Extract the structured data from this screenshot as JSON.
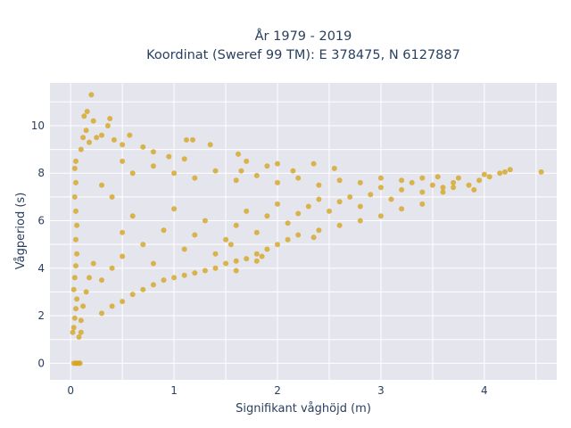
{
  "chart_data": {
    "type": "scatter",
    "title_lines": [
      "År 1979 - 2019",
      "Koordinat (Sweref 99 TM): E 378475, N 6127887"
    ],
    "xlabel": "Signifikant våghöjd (m)",
    "ylabel": "Vågperiod (s)",
    "xlim": [
      -0.2,
      4.7
    ],
    "ylim": [
      -0.7,
      11.8
    ],
    "xticks": [
      0,
      1,
      2,
      3,
      4
    ],
    "yticks": [
      0,
      2,
      4,
      6,
      8,
      10
    ],
    "grid": true,
    "legend": "none",
    "marker_color": "#d4a520",
    "plot_background": "#e5e5ee",
    "series": [
      {
        "points": [
          [
            0.03,
            0.0
          ],
          [
            0.05,
            0.0
          ],
          [
            0.06,
            0.0
          ],
          [
            0.08,
            0.0
          ],
          [
            0.09,
            0.0
          ],
          [
            0.02,
            1.3
          ],
          [
            0.03,
            1.5
          ],
          [
            0.04,
            1.9
          ],
          [
            0.05,
            2.3
          ],
          [
            0.06,
            2.7
          ],
          [
            0.03,
            3.1
          ],
          [
            0.04,
            3.6
          ],
          [
            0.05,
            4.1
          ],
          [
            0.06,
            4.6
          ],
          [
            0.05,
            5.2
          ],
          [
            0.06,
            5.8
          ],
          [
            0.05,
            6.4
          ],
          [
            0.04,
            7.0
          ],
          [
            0.05,
            7.6
          ],
          [
            0.04,
            8.2
          ],
          [
            0.05,
            8.5
          ],
          [
            0.08,
            1.1
          ],
          [
            0.1,
            1.3
          ],
          [
            0.1,
            1.8
          ],
          [
            0.12,
            2.4
          ],
          [
            0.15,
            3.0
          ],
          [
            0.18,
            3.6
          ],
          [
            0.22,
            4.2
          ],
          [
            0.1,
            9.0
          ],
          [
            0.12,
            9.5
          ],
          [
            0.13,
            10.4
          ],
          [
            0.16,
            10.6
          ],
          [
            0.2,
            11.3
          ],
          [
            0.15,
            9.8
          ],
          [
            0.18,
            9.3
          ],
          [
            0.22,
            10.2
          ],
          [
            0.25,
            9.5
          ],
          [
            0.3,
            9.6
          ],
          [
            0.36,
            10.0
          ],
          [
            0.38,
            10.3
          ],
          [
            0.42,
            9.4
          ],
          [
            0.5,
            9.2
          ],
          [
            0.57,
            9.6
          ],
          [
            0.7,
            9.1
          ],
          [
            0.8,
            8.9
          ],
          [
            0.95,
            8.7
          ],
          [
            1.12,
            9.4
          ],
          [
            1.18,
            9.4
          ],
          [
            1.35,
            9.2
          ],
          [
            1.62,
            8.8
          ],
          [
            1.7,
            8.5
          ],
          [
            1.65,
            8.1
          ],
          [
            1.9,
            8.3
          ],
          [
            2.0,
            8.4
          ],
          [
            2.15,
            8.1
          ],
          [
            2.35,
            8.4
          ],
          [
            2.55,
            8.2
          ],
          [
            0.3,
            2.1
          ],
          [
            0.4,
            2.4
          ],
          [
            0.5,
            2.6
          ],
          [
            0.6,
            2.9
          ],
          [
            0.7,
            3.1
          ],
          [
            0.8,
            3.3
          ],
          [
            0.9,
            3.5
          ],
          [
            1.0,
            3.6
          ],
          [
            1.1,
            3.7
          ],
          [
            1.2,
            3.8
          ],
          [
            1.3,
            3.9
          ],
          [
            1.4,
            4.0
          ],
          [
            1.5,
            4.2
          ],
          [
            1.6,
            4.3
          ],
          [
            1.7,
            4.4
          ],
          [
            1.8,
            4.6
          ],
          [
            1.85,
            4.5
          ],
          [
            1.9,
            4.8
          ],
          [
            2.0,
            5.0
          ],
          [
            2.1,
            5.2
          ],
          [
            2.2,
            5.4
          ],
          [
            2.4,
            5.6
          ],
          [
            2.35,
            5.3
          ],
          [
            2.6,
            5.8
          ],
          [
            2.8,
            6.0
          ],
          [
            3.0,
            6.2
          ],
          [
            3.2,
            6.5
          ],
          [
            3.4,
            6.7
          ],
          [
            0.3,
            3.5
          ],
          [
            0.4,
            4.0
          ],
          [
            0.5,
            4.5
          ],
          [
            0.5,
            5.5
          ],
          [
            0.6,
            6.2
          ],
          [
            0.4,
            7.0
          ],
          [
            0.3,
            7.5
          ],
          [
            0.7,
            5.0
          ],
          [
            0.8,
            4.2
          ],
          [
            0.9,
            5.6
          ],
          [
            1.0,
            6.5
          ],
          [
            1.1,
            4.8
          ],
          [
            1.2,
            5.4
          ],
          [
            1.3,
            6.0
          ],
          [
            1.4,
            4.6
          ],
          [
            1.5,
            5.2
          ],
          [
            1.6,
            5.8
          ],
          [
            1.7,
            6.4
          ],
          [
            1.8,
            5.5
          ],
          [
            1.9,
            6.2
          ],
          [
            2.0,
            6.7
          ],
          [
            2.1,
            5.9
          ],
          [
            2.2,
            6.3
          ],
          [
            2.3,
            6.6
          ],
          [
            2.4,
            6.9
          ],
          [
            2.5,
            6.4
          ],
          [
            2.6,
            6.8
          ],
          [
            2.7,
            7.0
          ],
          [
            2.8,
            6.6
          ],
          [
            2.9,
            7.1
          ],
          [
            3.0,
            7.4
          ],
          [
            3.1,
            6.9
          ],
          [
            3.2,
            7.3
          ],
          [
            3.3,
            7.6
          ],
          [
            3.4,
            7.2
          ],
          [
            3.5,
            7.5
          ],
          [
            3.6,
            7.4
          ],
          [
            3.7,
            7.6
          ],
          [
            0.6,
            8.0
          ],
          [
            0.8,
            8.3
          ],
          [
            1.0,
            8.0
          ],
          [
            1.2,
            7.8
          ],
          [
            1.4,
            8.1
          ],
          [
            1.6,
            7.7
          ],
          [
            1.8,
            7.9
          ],
          [
            2.0,
            7.6
          ],
          [
            2.2,
            7.8
          ],
          [
            2.4,
            7.5
          ],
          [
            2.6,
            7.7
          ],
          [
            2.8,
            7.6
          ],
          [
            3.0,
            7.8
          ],
          [
            3.2,
            7.7
          ],
          [
            3.4,
            7.8
          ],
          [
            3.55,
            7.85
          ],
          [
            3.6,
            7.2
          ],
          [
            3.7,
            7.4
          ],
          [
            3.75,
            7.8
          ],
          [
            3.85,
            7.5
          ],
          [
            3.9,
            7.3
          ],
          [
            3.95,
            7.7
          ],
          [
            4.0,
            7.95
          ],
          [
            4.05,
            7.85
          ],
          [
            4.15,
            8.0
          ],
          [
            4.2,
            8.05
          ],
          [
            4.25,
            8.15
          ],
          [
            4.55,
            8.05
          ],
          [
            1.55,
            5.0
          ],
          [
            1.8,
            4.3
          ],
          [
            1.6,
            3.9
          ],
          [
            0.5,
            8.5
          ],
          [
            1.1,
            8.6
          ]
        ]
      }
    ]
  }
}
